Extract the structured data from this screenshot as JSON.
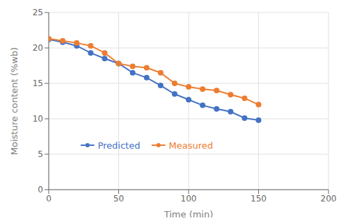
{
  "chart_data": {
    "type": "line",
    "xlabel": "Time (min)",
    "ylabel": "Moisture content (%wb)",
    "x": [
      0,
      10,
      20,
      30,
      40,
      50,
      60,
      70,
      80,
      90,
      100,
      110,
      120,
      130,
      140,
      150
    ],
    "series": [
      {
        "name": "Predicted",
        "color": "#4472C4",
        "marker": "circle",
        "line_style": "solid",
        "values": [
          21.2,
          20.8,
          20.3,
          19.3,
          18.5,
          17.8,
          16.5,
          15.8,
          14.7,
          13.5,
          12.7,
          11.9,
          11.4,
          11.0,
          10.1,
          9.8
        ]
      },
      {
        "name": "Measured",
        "color": "#ED7D31",
        "marker": "circle",
        "line_style": "solid",
        "values": [
          21.3,
          21.0,
          20.7,
          20.3,
          19.3,
          17.8,
          17.4,
          17.2,
          16.5,
          15.0,
          14.5,
          14.2,
          14.0,
          13.4,
          12.9,
          12.0
        ]
      }
    ],
    "xlim": [
      0,
      200
    ],
    "ylim": [
      0,
      25
    ],
    "xticks": [
      0,
      50,
      100,
      150,
      200
    ],
    "yticks": [
      0,
      5,
      10,
      15,
      20,
      25
    ],
    "grid": true,
    "legend": "bottom"
  }
}
